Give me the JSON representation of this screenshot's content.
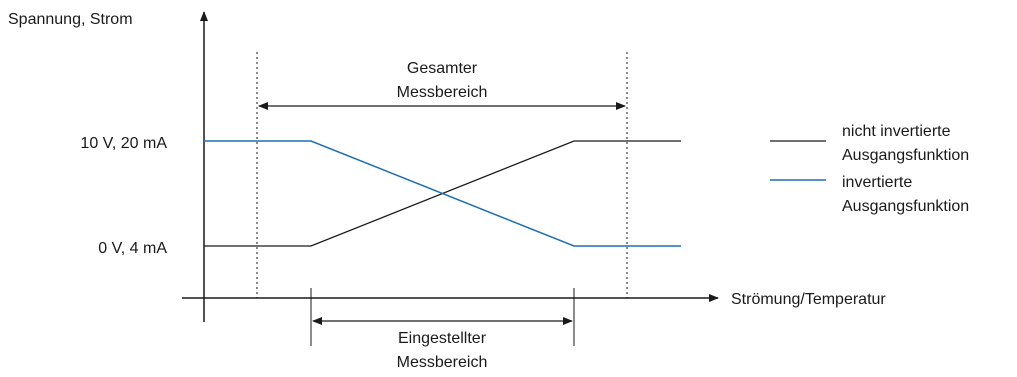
{
  "y_axis_label": "Spannung, Strom",
  "x_axis_label": "Strömung/Temperatur",
  "levels": {
    "high": "10 V, 20 mA",
    "low": "0 V, 4 mA"
  },
  "total_range": {
    "line1": "Gesamter",
    "line2": "Messbereich"
  },
  "set_range": {
    "line1": "Eingestellter",
    "line2": "Messbereich"
  },
  "legend": {
    "non_inverted_line1": "nicht invertierte",
    "non_inverted_line2": "Ausgangsfunktion",
    "inverted_line1": "invertierte",
    "inverted_line2": "Ausgangsfunktion"
  },
  "colors": {
    "non_inverted": "#1a1a1a",
    "inverted": "#1f6fb2",
    "axes": "#1a1a1a"
  }
}
